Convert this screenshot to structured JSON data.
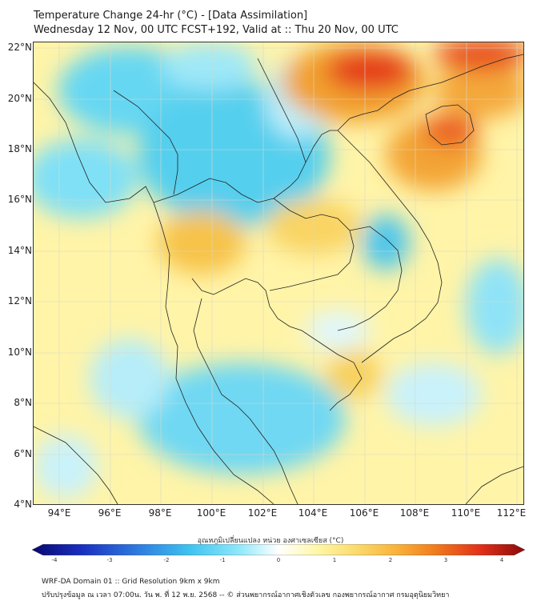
{
  "header": {
    "title": "Temperature Change 24-hr (°C) - [Data Assimilation]",
    "subtitle": "Wednesday 12 Nov, 00 UTC FCST+192, Valid at :: Thu 20 Nov, 00 UTC"
  },
  "map": {
    "lat_labels": [
      "22°N",
      "20°N",
      "18°N",
      "16°N",
      "14°N",
      "12°N",
      "10°N",
      "8°N",
      "6°N",
      "4°N"
    ],
    "lon_labels": [
      "94°E",
      "96°E",
      "98°E",
      "100°E",
      "102°E",
      "104°E",
      "106°E",
      "108°E",
      "110°E",
      "112°E"
    ],
    "lat_range": [
      4,
      22
    ],
    "lon_range": [
      93,
      112.3
    ]
  },
  "colorbar": {
    "title": "อุณหภูมิเปลี่ยนแปลง หน่วย องศาเซลเซียส (°C)",
    "ticks": [
      "-4",
      "-3",
      "-2",
      "-1",
      "0",
      "1",
      "2",
      "3",
      "4"
    ],
    "range": [
      -4,
      4
    ],
    "colors": [
      "#08086e",
      "#1a2fc0",
      "#2f7fe0",
      "#3fc3f0",
      "#8fe8fb",
      "#ffffff",
      "#fff7a6",
      "#fbd96b",
      "#f9b23a",
      "#f07a1c",
      "#e0301a",
      "#8a0a0a"
    ]
  },
  "footer": {
    "line1": "WRF-DA Domain 01 :: Grid Resolution 9km x 9km",
    "line2": "ปรับปรุงข้อมูล ณ เวลา 07:00น. วัน พ. ที่ 12 พ.ย. 2568 -- © ส่วนพยากรณ์อากาศเชิงตัวเลข กองพยากรณ์อากาศ กรมอุตุนิยมวิทยา"
  }
}
